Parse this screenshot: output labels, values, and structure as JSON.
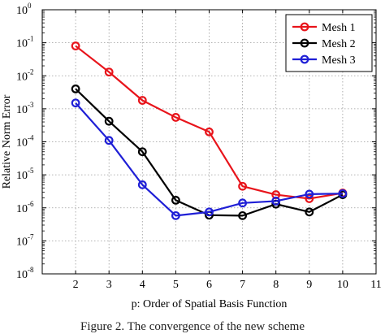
{
  "chart_data": {
    "type": "line",
    "xlabel": "p: Order of Spatial Basis Function",
    "ylabel": "Relative Norm Error",
    "xlim": [
      1,
      11
    ],
    "x_ticks": [
      2,
      3,
      4,
      5,
      6,
      7,
      8,
      9,
      10,
      11
    ],
    "ylim": [
      1e-08,
      1
    ],
    "y_scale": "log",
    "y_tick_exponents": [
      -8,
      -7,
      -6,
      -5,
      -4,
      -3,
      -2,
      -1,
      0
    ],
    "grid": true,
    "legend_position": "top-right",
    "series": [
      {
        "name": "Mesh 1",
        "color": "#e8141b",
        "x": [
          2,
          3,
          4,
          5,
          6,
          7,
          8,
          9,
          10
        ],
        "y": [
          0.08,
          0.013,
          0.0018,
          0.00055,
          0.0002,
          4.5e-06,
          2.5e-06,
          1.9e-06,
          2.8e-06
        ]
      },
      {
        "name": "Mesh 2",
        "color": "#000000",
        "x": [
          2,
          3,
          4,
          5,
          6,
          7,
          8,
          9,
          10
        ],
        "y": [
          0.004,
          0.00042,
          5e-05,
          1.7e-06,
          6e-07,
          5.8e-07,
          1.3e-06,
          7.5e-07,
          2.5e-06
        ]
      },
      {
        "name": "Mesh 3",
        "color": "#1f1fd6",
        "x": [
          2,
          3,
          4,
          5,
          6,
          7,
          8,
          9,
          10
        ],
        "y": [
          0.0015,
          0.00011,
          5e-06,
          5.8e-07,
          7.5e-07,
          1.4e-06,
          1.6e-06,
          2.6e-06,
          2.7e-06
        ]
      }
    ]
  },
  "caption": "Figure 2. The convergence of the new scheme"
}
